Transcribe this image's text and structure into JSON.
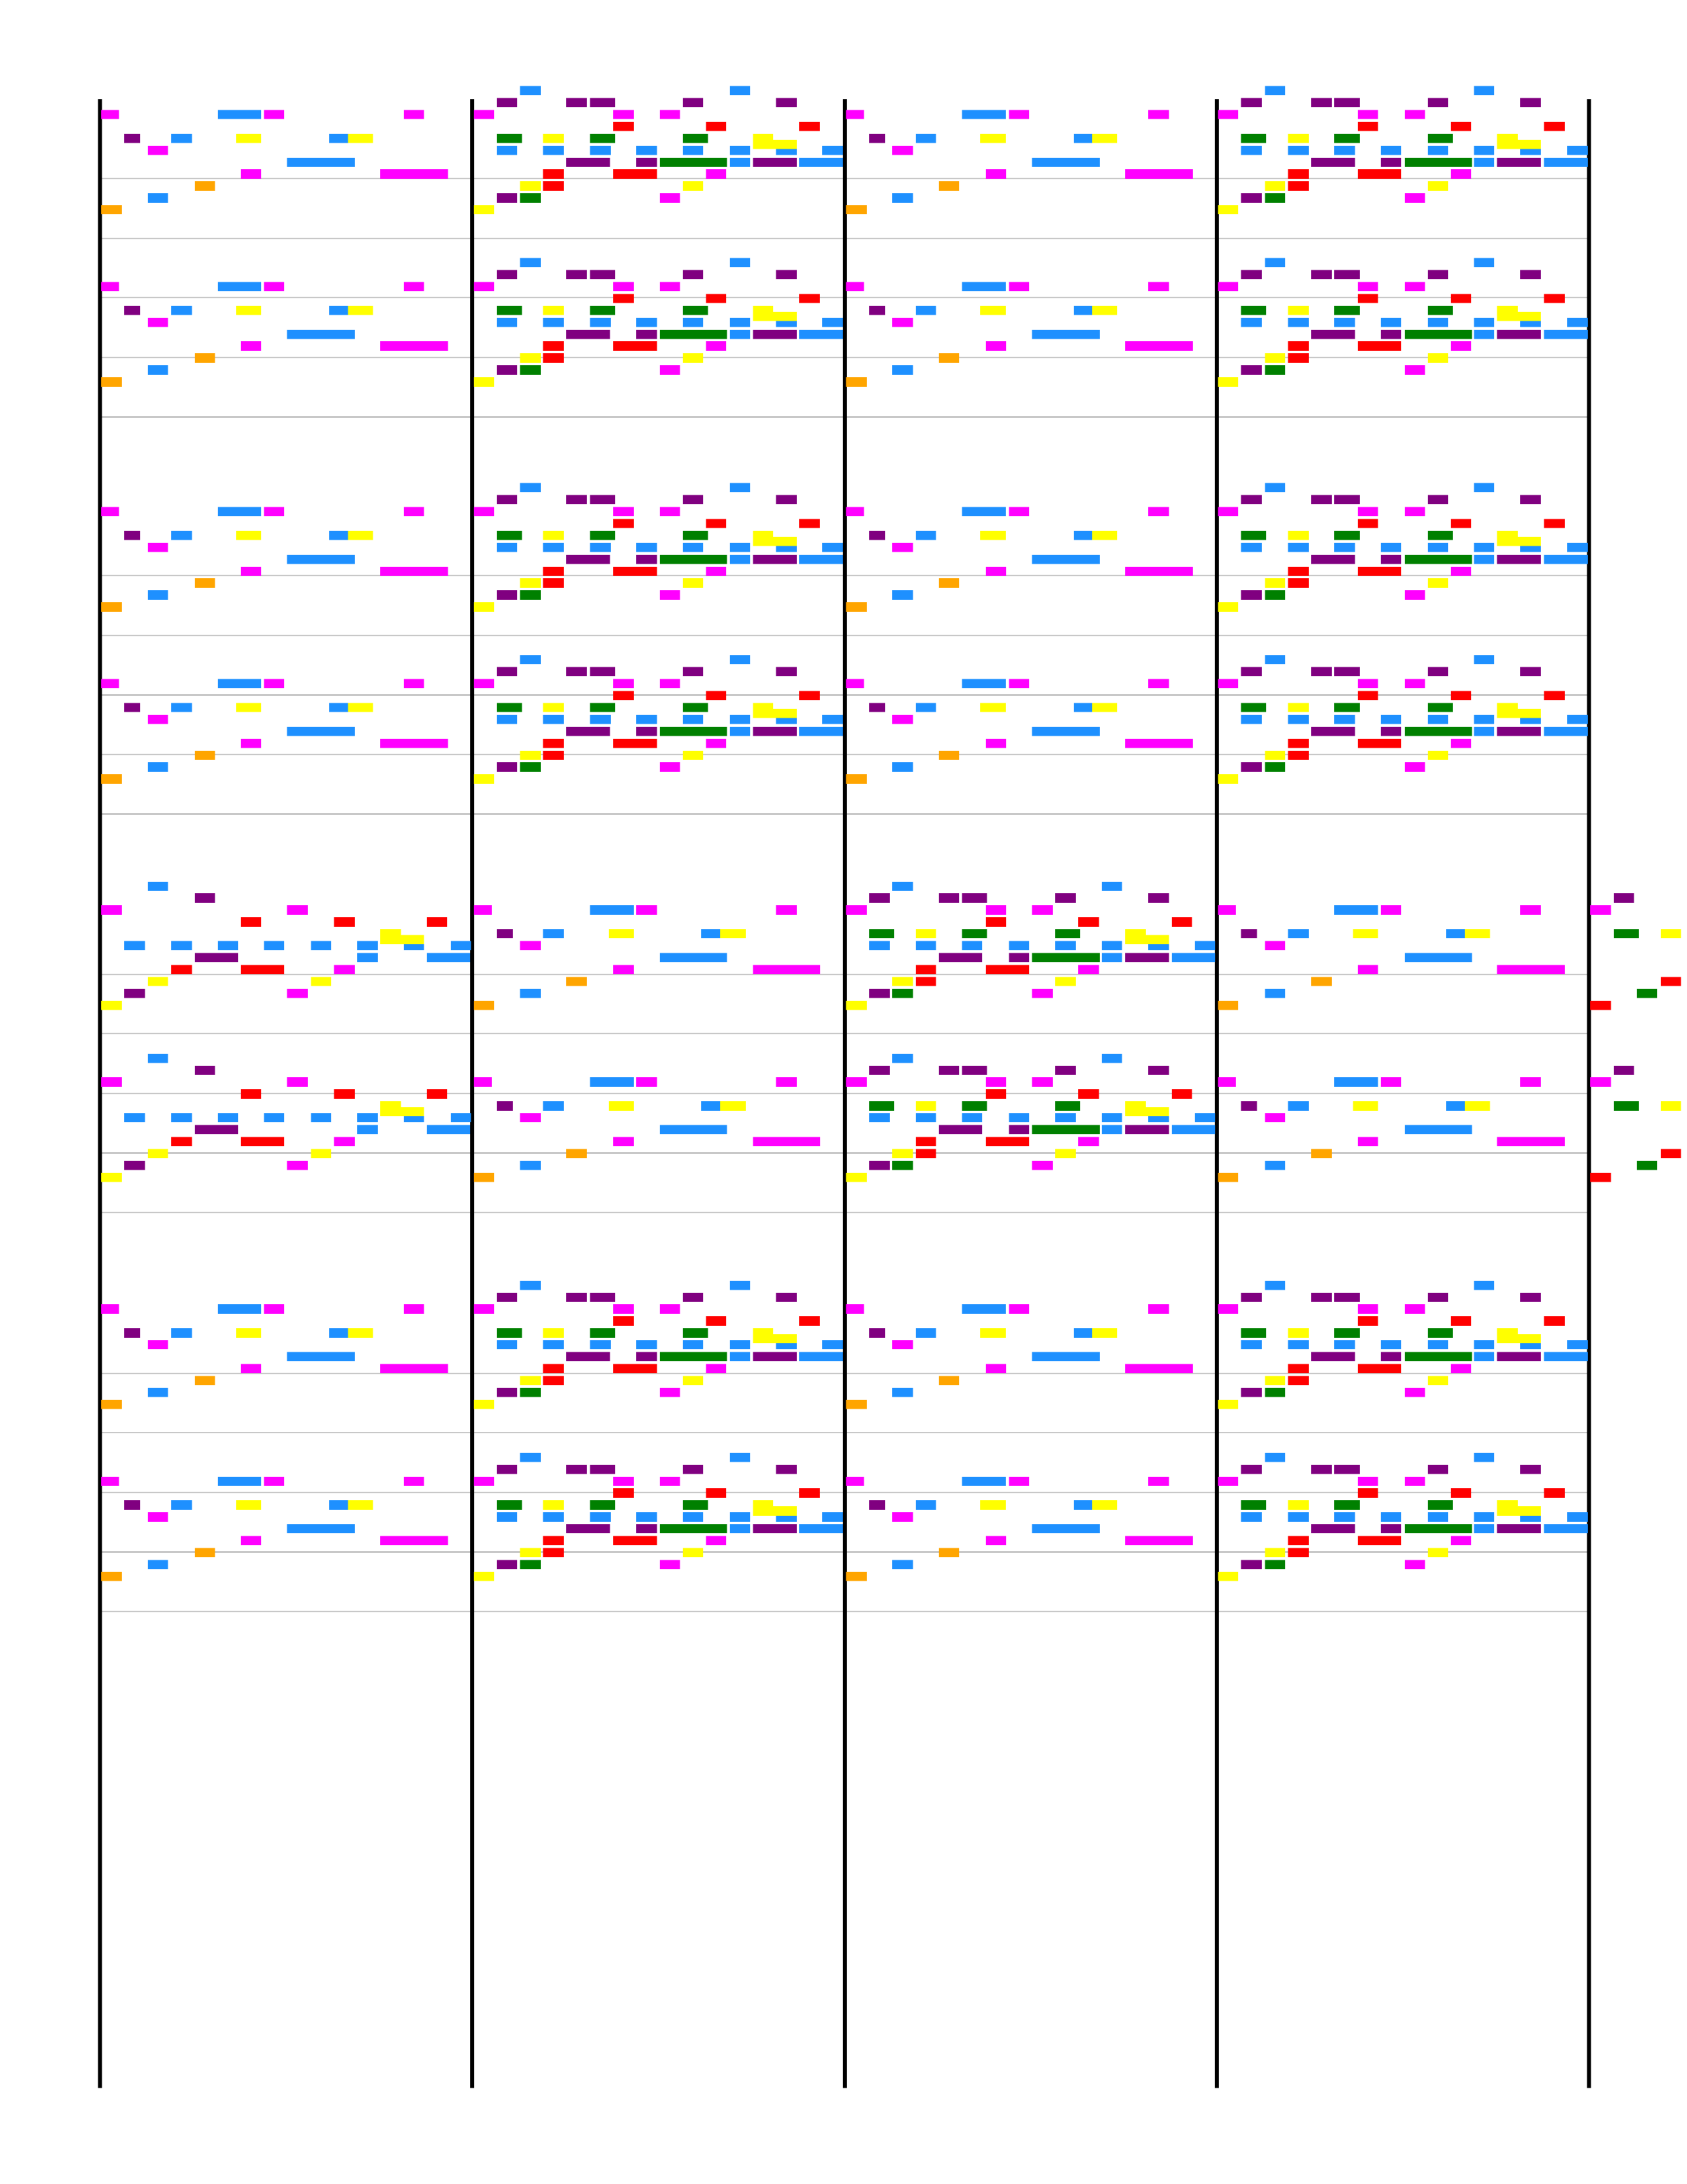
{
  "colors": {
    "background": "#ffffff",
    "barline": "#000000",
    "staffline": "#c0c0c0",
    "magenta": "#ff00ff",
    "purple": "#800080",
    "blue": "#1e90ff",
    "yellow": "#ffff00",
    "green": "#008000",
    "orange": "#ffa500",
    "red": "#ff0000",
    "crimson": "#dc143c",
    "orangered": "#ff4500"
  },
  "systems": [
    {
      "measures": [
        [
          [
            "m",
            0.0,
            0.44,
            8
          ],
          [
            "b",
            2.5,
            3.5,
            8
          ],
          [
            "v",
            0.5,
            0.9,
            6
          ],
          [
            "m",
            3.5,
            4.0,
            8
          ],
          [
            "y",
            2.9,
            3.5,
            6
          ],
          [
            "m",
            6.5,
            7.0,
            8
          ],
          [
            "b",
            4.9,
            5.5,
            6
          ],
          [
            "y",
            5.3,
            5.9,
            6
          ],
          [
            "m",
            8.0,
            8.5,
            8
          ],
          [
            "v",
            8.5,
            9.0,
            9
          ],
          [
            "g",
            8.5,
            9.1,
            6
          ],
          [
            "y",
            9.5,
            10.0,
            6
          ],
          [
            "v",
            10.5,
            11.1,
            9
          ],
          [
            "g",
            10.5,
            11.1,
            6
          ],
          [
            "m",
            11.0,
            11.5,
            8
          ],
          [
            "v",
            12.5,
            13.0,
            9
          ],
          [
            "b",
            13.5,
            14.0,
            10
          ],
          [
            "v",
            14.5,
            15.0,
            9
          ],
          [
            "g",
            12.5,
            13.1,
            6
          ],
          [
            "m",
            1.0,
            1.5,
            5
          ],
          [
            "b",
            1.5,
            2.0,
            6
          ],
          [
            "o",
            0,
            0.5,
            0
          ],
          [
            "b",
            1.0,
            1.5,
            1
          ],
          [
            "o",
            2.0,
            2.5,
            2
          ],
          [
            "m",
            3.0,
            3.5,
            3
          ],
          [
            "b",
            4.0,
            5.5,
            4
          ],
          [
            "m",
            6.0,
            7.5,
            3
          ],
          [
            "g",
            9.0,
            9.5,
            1
          ],
          [
            "r",
            9.5,
            10.0,
            2
          ],
          [
            "r",
            8.0,
            8.5,
            0
          ],
          [
            "v",
            11.5,
            12.0,
            4
          ],
          [
            "g",
            12.0,
            13.5,
            4
          ],
          [
            "v",
            14.0,
            15.0,
            4
          ]
        ],
        [
          [
            "m",
            0,
            0.5,
            8
          ],
          [
            "b",
            1.0,
            1.5,
            10
          ],
          [
            "v",
            2.0,
            2.5,
            9
          ],
          [
            "r",
            3.0,
            3.5,
            7
          ],
          [
            "m",
            4.0,
            4.5,
            8
          ],
          [
            "r",
            5.0,
            5.5,
            7
          ],
          [
            "y",
            6.0,
            6.5,
            6
          ],
          [
            "r",
            7.0,
            7.5,
            7
          ],
          [
            "b",
            0.5,
            1.0,
            5
          ],
          [
            "b",
            1.5,
            2.0,
            5
          ],
          [
            "b",
            2.5,
            3.0,
            5
          ],
          [
            "b",
            3.5,
            4.0,
            5
          ],
          [
            "b",
            4.5,
            5.0,
            5
          ],
          [
            "b",
            5.5,
            6.0,
            5
          ],
          [
            "b",
            6.5,
            7.0,
            5
          ],
          [
            "b",
            7.5,
            8.0,
            5
          ],
          [
            "y",
            0,
            0.5,
            0
          ],
          [
            "v",
            0.5,
            1.0,
            1
          ],
          [
            "y",
            1.0,
            1.5,
            2
          ],
          [
            "r",
            1.5,
            2.0,
            3
          ],
          [
            "v",
            2.0,
            3.0,
            4
          ],
          [
            "r",
            3.0,
            4.0,
            3
          ],
          [
            "m",
            4.0,
            4.5,
            1
          ],
          [
            "y",
            4.5,
            5.0,
            2
          ],
          [
            "m",
            5.0,
            5.5,
            3
          ],
          [
            "b",
            5.5,
            6.0,
            4
          ],
          [
            "y",
            6.0,
            7.0,
            5.5
          ],
          [
            "b",
            7.0,
            8.0,
            4
          ]
        ]
      ],
      "duplicate_of_previous": false
    }
  ]
}
